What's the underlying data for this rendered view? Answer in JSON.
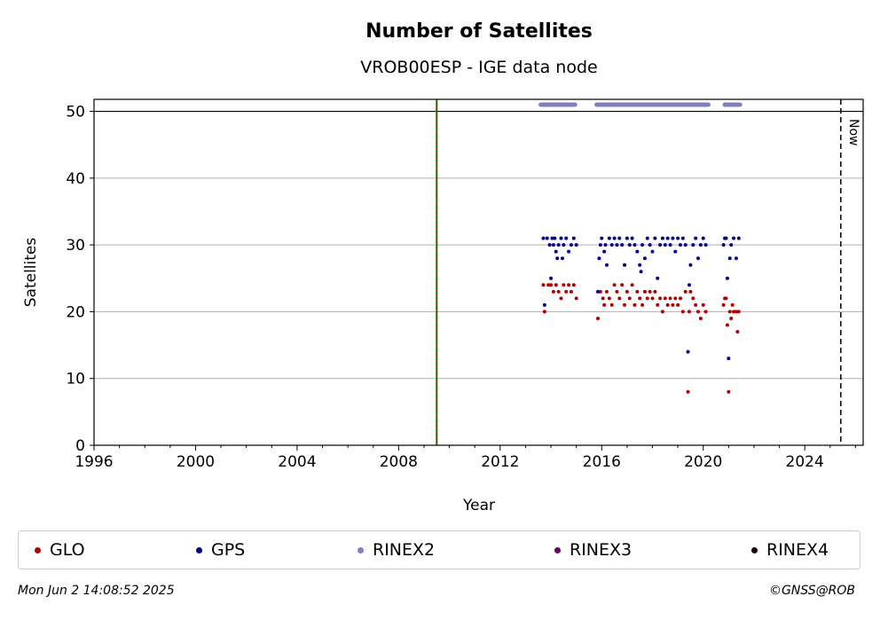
{
  "chart_data": {
    "type": "scatter",
    "title": "Number of Satellites",
    "subtitle": "VROB00ESP - IGE data node",
    "xlabel": "Year",
    "ylabel": "Satellites",
    "xlim": [
      1996,
      2026.3
    ],
    "ylim": [
      0,
      51.8
    ],
    "xticks": [
      1996,
      2000,
      2004,
      2008,
      2012,
      2016,
      2020,
      2024
    ],
    "yticks": [
      0,
      10,
      20,
      30,
      40,
      50
    ],
    "grid": "horizontal",
    "reference_lines": [
      {
        "x": 2009.5,
        "style": "green-red dotted"
      },
      {
        "x": 2025.42,
        "style": "black dashed",
        "label": "Now"
      }
    ],
    "series": [
      {
        "name": "GLO",
        "color": "#b30000",
        "points": [
          [
            2013.75,
            20
          ],
          [
            2013.7,
            24
          ],
          [
            2013.9,
            24
          ],
          [
            2014.0,
            24
          ],
          [
            2014.1,
            23
          ],
          [
            2014.2,
            24
          ],
          [
            2014.3,
            23
          ],
          [
            2014.4,
            22
          ],
          [
            2014.5,
            24
          ],
          [
            2014.6,
            23
          ],
          [
            2014.7,
            24
          ],
          [
            2014.8,
            23
          ],
          [
            2014.9,
            24
          ],
          [
            2015.0,
            22
          ],
          [
            2015.85,
            19
          ],
          [
            2015.95,
            23
          ],
          [
            2016.05,
            22
          ],
          [
            2016.1,
            21
          ],
          [
            2016.2,
            23
          ],
          [
            2016.3,
            22
          ],
          [
            2016.4,
            21
          ],
          [
            2016.5,
            24
          ],
          [
            2016.6,
            23
          ],
          [
            2016.7,
            22
          ],
          [
            2016.8,
            24
          ],
          [
            2016.9,
            21
          ],
          [
            2017.0,
            23
          ],
          [
            2017.1,
            22
          ],
          [
            2017.2,
            24
          ],
          [
            2017.3,
            21
          ],
          [
            2017.4,
            23
          ],
          [
            2017.5,
            22
          ],
          [
            2017.6,
            21
          ],
          [
            2017.7,
            23
          ],
          [
            2017.8,
            22
          ],
          [
            2017.9,
            23
          ],
          [
            2018.0,
            22
          ],
          [
            2018.1,
            23
          ],
          [
            2018.2,
            21
          ],
          [
            2018.3,
            22
          ],
          [
            2018.4,
            20
          ],
          [
            2018.5,
            22
          ],
          [
            2018.6,
            21
          ],
          [
            2018.7,
            22
          ],
          [
            2018.8,
            21
          ],
          [
            2018.9,
            22
          ],
          [
            2019.0,
            21
          ],
          [
            2019.1,
            22
          ],
          [
            2019.2,
            20
          ],
          [
            2019.3,
            23
          ],
          [
            2019.4,
            8
          ],
          [
            2019.45,
            20
          ],
          [
            2019.5,
            23
          ],
          [
            2019.6,
            22
          ],
          [
            2019.7,
            21
          ],
          [
            2019.8,
            20
          ],
          [
            2019.9,
            19
          ],
          [
            2020.0,
            21
          ],
          [
            2020.1,
            20
          ],
          [
            2020.8,
            21
          ],
          [
            2020.85,
            22
          ],
          [
            2020.9,
            22
          ],
          [
            2020.95,
            18
          ],
          [
            2021.0,
            8
          ],
          [
            2021.05,
            20
          ],
          [
            2021.1,
            19
          ],
          [
            2021.15,
            21
          ],
          [
            2021.2,
            20
          ],
          [
            2021.3,
            20
          ],
          [
            2021.35,
            17
          ],
          [
            2021.4,
            20
          ]
        ]
      },
      {
        "name": "GPS",
        "color": "#00008b",
        "points": [
          [
            2013.7,
            31
          ],
          [
            2013.75,
            21
          ],
          [
            2013.85,
            31
          ],
          [
            2013.95,
            30
          ],
          [
            2014.0,
            25
          ],
          [
            2014.05,
            31
          ],
          [
            2014.1,
            30
          ],
          [
            2014.15,
            31
          ],
          [
            2014.2,
            29
          ],
          [
            2014.25,
            28
          ],
          [
            2014.3,
            30
          ],
          [
            2014.4,
            31
          ],
          [
            2014.45,
            28
          ],
          [
            2014.5,
            30
          ],
          [
            2014.6,
            31
          ],
          [
            2014.7,
            29
          ],
          [
            2014.8,
            30
          ],
          [
            2014.9,
            31
          ],
          [
            2015.0,
            30
          ],
          [
            2015.85,
            23
          ],
          [
            2015.9,
            28
          ],
          [
            2015.95,
            30
          ],
          [
            2016.0,
            31
          ],
          [
            2016.1,
            29
          ],
          [
            2016.15,
            30
          ],
          [
            2016.2,
            27
          ],
          [
            2016.3,
            31
          ],
          [
            2016.4,
            30
          ],
          [
            2016.5,
            31
          ],
          [
            2016.6,
            30
          ],
          [
            2016.7,
            31
          ],
          [
            2016.8,
            30
          ],
          [
            2016.9,
            27
          ],
          [
            2017.0,
            31
          ],
          [
            2017.1,
            30
          ],
          [
            2017.2,
            31
          ],
          [
            2017.3,
            30
          ],
          [
            2017.4,
            29
          ],
          [
            2017.5,
            27
          ],
          [
            2017.55,
            26
          ],
          [
            2017.6,
            30
          ],
          [
            2017.7,
            28
          ],
          [
            2017.8,
            31
          ],
          [
            2017.9,
            30
          ],
          [
            2018.0,
            29
          ],
          [
            2018.1,
            31
          ],
          [
            2018.2,
            25
          ],
          [
            2018.3,
            30
          ],
          [
            2018.4,
            31
          ],
          [
            2018.5,
            30
          ],
          [
            2018.6,
            31
          ],
          [
            2018.7,
            30
          ],
          [
            2018.8,
            31
          ],
          [
            2018.9,
            29
          ],
          [
            2019.0,
            31
          ],
          [
            2019.1,
            30
          ],
          [
            2019.2,
            31
          ],
          [
            2019.3,
            30
          ],
          [
            2019.4,
            14
          ],
          [
            2019.45,
            24
          ],
          [
            2019.5,
            27
          ],
          [
            2019.6,
            30
          ],
          [
            2019.7,
            31
          ],
          [
            2019.8,
            28
          ],
          [
            2019.9,
            30
          ],
          [
            2020.0,
            31
          ],
          [
            2020.1,
            30
          ],
          [
            2020.8,
            30
          ],
          [
            2020.85,
            31
          ],
          [
            2020.9,
            31
          ],
          [
            2020.95,
            25
          ],
          [
            2021.0,
            13
          ],
          [
            2021.05,
            28
          ],
          [
            2021.1,
            30
          ],
          [
            2021.2,
            31
          ],
          [
            2021.3,
            28
          ],
          [
            2021.4,
            31
          ]
        ]
      },
      {
        "name": "RINEX2",
        "color": "#8080c0",
        "segments": [
          [
            2013.6,
            2014.95
          ],
          [
            2015.8,
            2020.2
          ],
          [
            2020.85,
            2021.45
          ]
        ],
        "value": 51
      },
      {
        "name": "RINEX3",
        "color": "#6a0060",
        "points": []
      },
      {
        "name": "RINEX4",
        "color": "#1a0010",
        "points": []
      }
    ]
  },
  "legend": [
    {
      "label": "GLO",
      "color": "#b30000"
    },
    {
      "label": "GPS",
      "color": "#00008b"
    },
    {
      "label": "RINEX2",
      "color": "#8080c0"
    },
    {
      "label": "RINEX3",
      "color": "#6a0060"
    },
    {
      "label": "RINEX4",
      "color": "#1a0010"
    }
  ],
  "footer": {
    "timestamp": "Mon Jun  2 14:08:52 2025",
    "copyright": "©GNSS@ROB"
  },
  "now_label": "Now"
}
